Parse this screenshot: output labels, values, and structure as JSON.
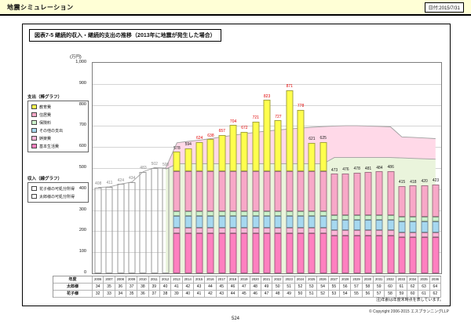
{
  "header": {
    "app_title": "地震シミュレーション",
    "date_label": "日付:2015/7/31"
  },
  "report": {
    "chart_title": "図表7-5 継続的収入・継続的支出の推移（2013年に地震が発生した場合）",
    "note": "注)年齢は年度末時点を表しています。",
    "page_number": "524",
    "copyright": "© Copyright 2006-2015 エスプランニングLLP"
  },
  "legend": {
    "expense_title": "支出（棒グラフ）",
    "expense_items": [
      {
        "label": "教育費",
        "color": "#ffff4d"
      },
      {
        "label": "住居費",
        "color": "#f8a8c8"
      },
      {
        "label": "保険料",
        "color": "#ccf2cc"
      },
      {
        "label": "その他の支出",
        "color": "#a6d8f0"
      },
      {
        "label": "娯楽費",
        "color": "#ffb6d9"
      },
      {
        "label": "基本生活費",
        "color": "#ff80c0"
      }
    ],
    "income_title": "収入（線グラフ）",
    "income_items": [
      {
        "label": "花子様の可処分所得",
        "color": "#ffffff"
      },
      {
        "label": "太郎様の可処分所得",
        "color": "#ffffff"
      }
    ]
  },
  "chart_data": {
    "type": "bar",
    "subtype": "stacked-bars-with-income-area",
    "y_unit": "(万円)",
    "ylim": [
      0,
      1000
    ],
    "y_tick_step": 100,
    "grid": true,
    "years": [
      2006,
      2007,
      2008,
      2009,
      2010,
      2011,
      2012,
      2013,
      2014,
      2015,
      2016,
      2017,
      2018,
      2019,
      2020,
      2021,
      2022,
      2023,
      2024,
      2025,
      2026,
      2027,
      2028,
      2029,
      2030,
      2031,
      2032,
      2033,
      2034,
      2035,
      2036
    ],
    "totals": [
      408,
      411,
      424,
      434,
      483,
      502,
      500,
      578,
      594,
      624,
      638,
      657,
      704,
      672,
      721,
      823,
      727,
      871,
      778,
      621,
      625,
      473,
      476,
      478,
      481,
      484,
      486,
      415,
      418,
      420,
      423
    ],
    "gray_label_years": [
      2006,
      2007,
      2008,
      2009,
      2010,
      2011,
      2012
    ],
    "red_label_years": [
      2015,
      2016,
      2017,
      2018,
      2019,
      2020,
      2021,
      2022,
      2023,
      2024
    ],
    "series": [
      {
        "name": "教育費",
        "color": "#ffff4d",
        "values": [
          0,
          0,
          0,
          0,
          0,
          0,
          0,
          94,
          110,
          140,
          154,
          173,
          220,
          188,
          237,
          339,
          243,
          387,
          294,
          137,
          141,
          0,
          0,
          0,
          0,
          0,
          0,
          0,
          0,
          0,
          0
        ]
      },
      {
        "name": "住居費",
        "color": "#f8a8c8",
        "values": [
          0,
          0,
          0,
          0,
          0,
          0,
          0,
          190,
          190,
          190,
          190,
          190,
          190,
          190,
          190,
          190,
          190,
          190,
          190,
          190,
          190,
          197,
          200,
          202,
          205,
          208,
          210,
          147,
          150,
          152,
          155
        ]
      },
      {
        "name": "保険料",
        "color": "#ccf2cc",
        "values": [
          0,
          0,
          0,
          0,
          0,
          0,
          0,
          22,
          22,
          22,
          22,
          22,
          22,
          22,
          22,
          22,
          22,
          22,
          22,
          22,
          22,
          22,
          22,
          22,
          22,
          22,
          22,
          22,
          22,
          22,
          22
        ]
      },
      {
        "name": "その他の支出",
        "color": "#a6d8f0",
        "values": [
          0,
          0,
          0,
          0,
          0,
          0,
          0,
          56,
          56,
          56,
          56,
          56,
          56,
          56,
          56,
          56,
          56,
          56,
          56,
          56,
          56,
          50,
          50,
          50,
          50,
          50,
          50,
          50,
          50,
          50,
          50
        ]
      },
      {
        "name": "娯楽費",
        "color": "#ffb6d9",
        "values": [
          0,
          0,
          0,
          0,
          0,
          0,
          0,
          24,
          24,
          24,
          24,
          24,
          24,
          24,
          24,
          24,
          24,
          24,
          24,
          24,
          24,
          24,
          24,
          24,
          24,
          24,
          24,
          24,
          24,
          24,
          24
        ]
      },
      {
        "name": "基本生活費",
        "color": "#ff80c0",
        "values": [
          0,
          0,
          0,
          0,
          0,
          0,
          0,
          192,
          192,
          192,
          192,
          192,
          192,
          192,
          192,
          192,
          192,
          192,
          192,
          192,
          192,
          180,
          180,
          180,
          180,
          180,
          180,
          172,
          172,
          172,
          172
        ]
      }
    ],
    "income_lines": {
      "taro_label": "太郎様の可処分所得",
      "hanako_label": "花子様の可処分所得",
      "taro": [
        403,
        406,
        419,
        429,
        478,
        497,
        495,
        520,
        520,
        520,
        520,
        520,
        520,
        520,
        520,
        520,
        520,
        520,
        520,
        520,
        520,
        550,
        550,
        550,
        550,
        550,
        550,
        548,
        546,
        544,
        542
      ],
      "total": [
        408,
        411,
        424,
        434,
        483,
        502,
        500,
        620,
        627,
        633,
        640,
        648,
        656,
        663,
        670,
        676,
        681,
        686,
        690,
        694,
        697,
        700,
        701,
        701,
        700,
        698,
        696,
        648,
        646,
        643,
        640
      ]
    },
    "area_colors": {
      "taro": "#eaf4dc",
      "hanako": "#ffd9e8"
    },
    "line_color": "#a0a0a0"
  },
  "table": {
    "row_headers": [
      "年度",
      "太郎様",
      "花子様"
    ],
    "taro_ages": [
      34,
      35,
      36,
      37,
      38,
      39,
      40,
      41,
      42,
      43,
      44,
      45,
      46,
      47,
      48,
      49,
      50,
      51,
      52,
      53,
      54,
      55,
      56,
      57,
      58,
      59,
      60,
      61,
      62,
      63,
      64
    ],
    "hanako_ages": [
      32,
      33,
      34,
      35,
      36,
      37,
      38,
      39,
      40,
      41,
      42,
      43,
      44,
      45,
      46,
      47,
      48,
      49,
      50,
      51,
      52,
      53,
      54,
      55,
      56,
      57,
      58,
      59,
      60,
      61,
      62
    ]
  },
  "label_colors": {
    "gray": "#8c8c8c",
    "red": "#e00000",
    "black": "#1a1a1a"
  }
}
